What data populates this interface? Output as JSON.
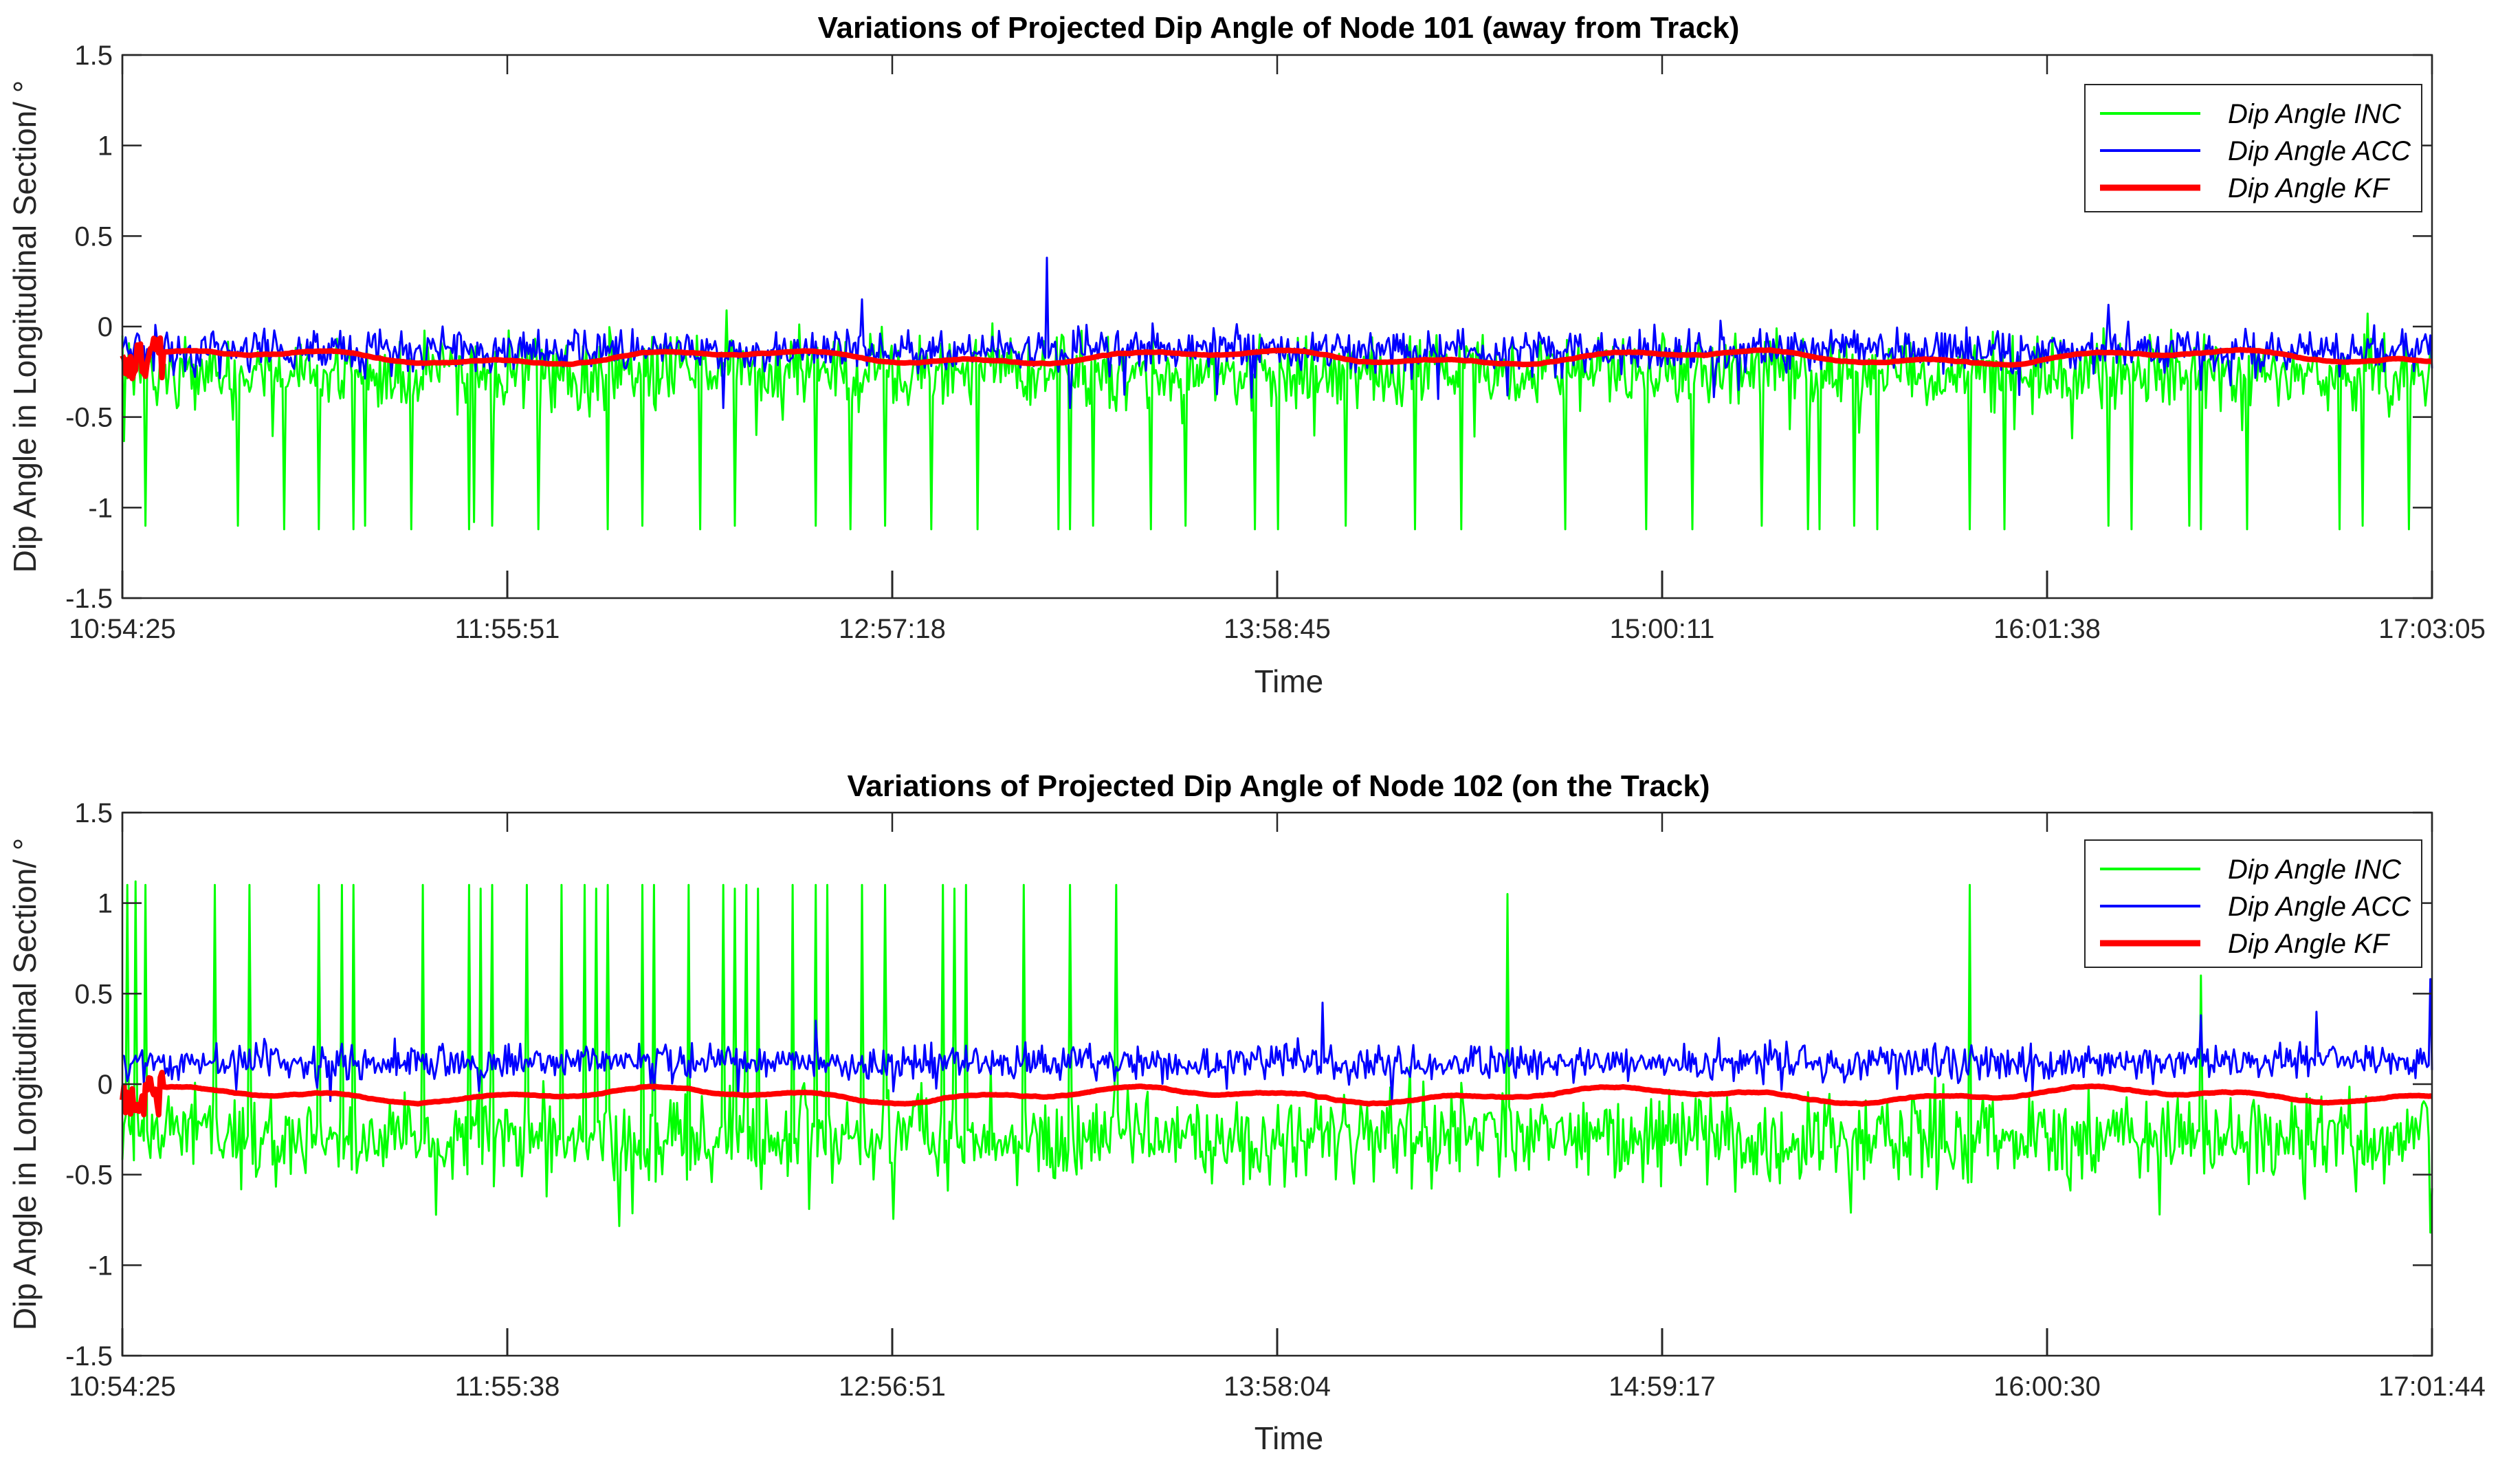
{
  "chart_data": [
    {
      "type": "line",
      "title": "Variations of Projected Dip Angle of Node 101 (away from Track)",
      "xlabel": "Time",
      "ylabel": "Dip Angle in Longitudinal Section/ °",
      "x_tick_labels": [
        "10:54:25",
        "11:55:51",
        "12:57:18",
        "13:58:45",
        "15:00:11",
        "16:01:38",
        "17:03:05"
      ],
      "y_ticks": [
        -1.5,
        -1,
        -0.5,
        0,
        0.5,
        1,
        1.5
      ],
      "y_tick_labels": [
        "-1.5",
        "-1",
        "-0.5",
        "0",
        "0.5",
        "1",
        "1.5"
      ],
      "ylim": [
        -1.5,
        1.5
      ],
      "x_range": [
        "10:54:25",
        "17:03:05"
      ],
      "grid": false,
      "legend": "top-right",
      "series": [
        {
          "name": "Dip Angle INC",
          "color": "#00ff00",
          "base": -0.2,
          "noise": 0.28,
          "bias": -0.05,
          "spikes": [
            [
              0.01,
              -1.1
            ],
            [
              0.05,
              -1.1
            ],
            [
              0.07,
              -1.12
            ],
            [
              0.085,
              -1.12
            ],
            [
              0.1,
              -1.12
            ],
            [
              0.105,
              -1.1
            ],
            [
              0.125,
              -1.12
            ],
            [
              0.15,
              -1.12
            ],
            [
              0.152,
              -1.08
            ],
            [
              0.16,
              -1.1
            ],
            [
              0.18,
              -1.12
            ],
            [
              0.21,
              -1.12
            ],
            [
              0.225,
              -1.1
            ],
            [
              0.25,
              -1.12
            ],
            [
              0.265,
              -1.1
            ],
            [
              0.3,
              -1.1
            ],
            [
              0.315,
              -1.12
            ],
            [
              0.33,
              -1.1
            ],
            [
              0.35,
              -1.12
            ],
            [
              0.37,
              -1.12
            ],
            [
              0.405,
              -1.12
            ],
            [
              0.41,
              -1.12
            ],
            [
              0.42,
              -1.1
            ],
            [
              0.445,
              -1.12
            ],
            [
              0.46,
              -1.1
            ],
            [
              0.49,
              -1.12
            ],
            [
              0.5,
              -1.12
            ],
            [
              0.53,
              -1.1
            ],
            [
              0.56,
              -1.12
            ],
            [
              0.58,
              -1.12
            ],
            [
              0.625,
              -1.12
            ],
            [
              0.66,
              -1.12
            ],
            [
              0.68,
              -1.12
            ],
            [
              0.71,
              -1.1
            ],
            [
              0.73,
              -1.12
            ],
            [
              0.735,
              -1.12
            ],
            [
              0.75,
              -1.1
            ],
            [
              0.76,
              -1.12
            ],
            [
              0.8,
              -1.12
            ],
            [
              0.815,
              -1.12
            ],
            [
              0.86,
              -1.1
            ],
            [
              0.87,
              -1.12
            ],
            [
              0.895,
              -1.1
            ],
            [
              0.9,
              -1.12
            ],
            [
              0.92,
              -1.12
            ],
            [
              0.96,
              -1.12
            ],
            [
              0.97,
              -1.1
            ],
            [
              0.99,
              -1.12
            ]
          ]
        },
        {
          "name": "Dip Angle ACC",
          "color": "#0000ff",
          "base": -0.13,
          "noise": 0.17,
          "bias": 0,
          "spikes": [
            [
              0.4,
              0.38
            ],
            [
              0.32,
              0.15
            ],
            [
              0.9,
              0.16
            ],
            [
              0.86,
              0.12
            ],
            [
              0.26,
              -0.45
            ],
            [
              0.41,
              -0.45
            ],
            [
              0.57,
              -0.4
            ],
            [
              0.6,
              -0.38
            ],
            [
              0.7,
              -0.35
            ],
            [
              0.9,
              -0.35
            ]
          ]
        },
        {
          "name": "Dip Angle KF",
          "color": "#ff0000",
          "base": -0.17,
          "noise": 0.03,
          "bias": 0,
          "spikes": []
        }
      ]
    },
    {
      "type": "line",
      "title": "Variations of Projected Dip Angle of Node 102 (on the Track)",
      "xlabel": "Time",
      "ylabel": "Dip Angle in Longitudinal Section/ °",
      "x_tick_labels": [
        "10:54:25",
        "11:55:38",
        "12:56:51",
        "13:58:04",
        "14:59:17",
        "16:00:30",
        "17:01:44"
      ],
      "y_ticks": [
        -1.5,
        -1,
        -0.5,
        0,
        0.5,
        1,
        1.5
      ],
      "y_tick_labels": [
        "-1.5",
        "-1",
        "-0.5",
        "0",
        "0.5",
        "1",
        "1.5"
      ],
      "ylim": [
        -1.5,
        1.5
      ],
      "x_range": [
        "10:54:25",
        "17:01:44"
      ],
      "grid": false,
      "legend": "top-right",
      "series": [
        {
          "name": "Dip Angle INC",
          "color": "#00ff00",
          "base": -0.25,
          "noise": 0.35,
          "bias": -0.05,
          "spikes": [
            [
              0.002,
              1.1
            ],
            [
              0.006,
              1.12
            ],
            [
              0.01,
              1.1
            ],
            [
              0.04,
              1.1
            ],
            [
              0.055,
              1.1
            ],
            [
              0.085,
              1.1
            ],
            [
              0.095,
              1.1
            ],
            [
              0.1,
              1.1
            ],
            [
              0.13,
              1.1
            ],
            [
              0.15,
              1.1
            ],
            [
              0.155,
              1.08
            ],
            [
              0.16,
              1.1
            ],
            [
              0.175,
              1.1
            ],
            [
              0.19,
              1.1
            ],
            [
              0.2,
              1.1
            ],
            [
              0.205,
              1.08
            ],
            [
              0.21,
              1.1
            ],
            [
              0.225,
              1.1
            ],
            [
              0.23,
              1.1
            ],
            [
              0.245,
              1.1
            ],
            [
              0.26,
              1.1
            ],
            [
              0.265,
              1.08
            ],
            [
              0.27,
              1.1
            ],
            [
              0.275,
              1.08
            ],
            [
              0.27,
              1.1
            ],
            [
              0.29,
              1.1
            ],
            [
              0.3,
              1.1
            ],
            [
              0.305,
              1.1
            ],
            [
              0.32,
              1.1
            ],
            [
              0.33,
              1.1
            ],
            [
              0.355,
              1.1
            ],
            [
              0.36,
              1.08
            ],
            [
              0.365,
              1.1
            ],
            [
              0.39,
              1.1
            ],
            [
              0.41,
              1.1
            ],
            [
              0.43,
              1.1
            ],
            [
              0.6,
              1.05
            ],
            [
              0.8,
              1.1
            ],
            [
              0.9,
              0.6
            ],
            [
              0.999,
              -0.82
            ]
          ]
        },
        {
          "name": "Dip Angle ACC",
          "color": "#0000ff",
          "base": 0.12,
          "noise": 0.14,
          "bias": 0,
          "spikes": [
            [
              0.52,
              0.45
            ],
            [
              0.999,
              0.58
            ],
            [
              0.95,
              0.4
            ],
            [
              0.9,
              0.38
            ],
            [
              0.3,
              0.35
            ]
          ]
        },
        {
          "name": "Dip Angle KF",
          "color": "#ff0000",
          "base": -0.06,
          "noise": 0.035,
          "bias": 0,
          "spikes": []
        }
      ]
    }
  ]
}
